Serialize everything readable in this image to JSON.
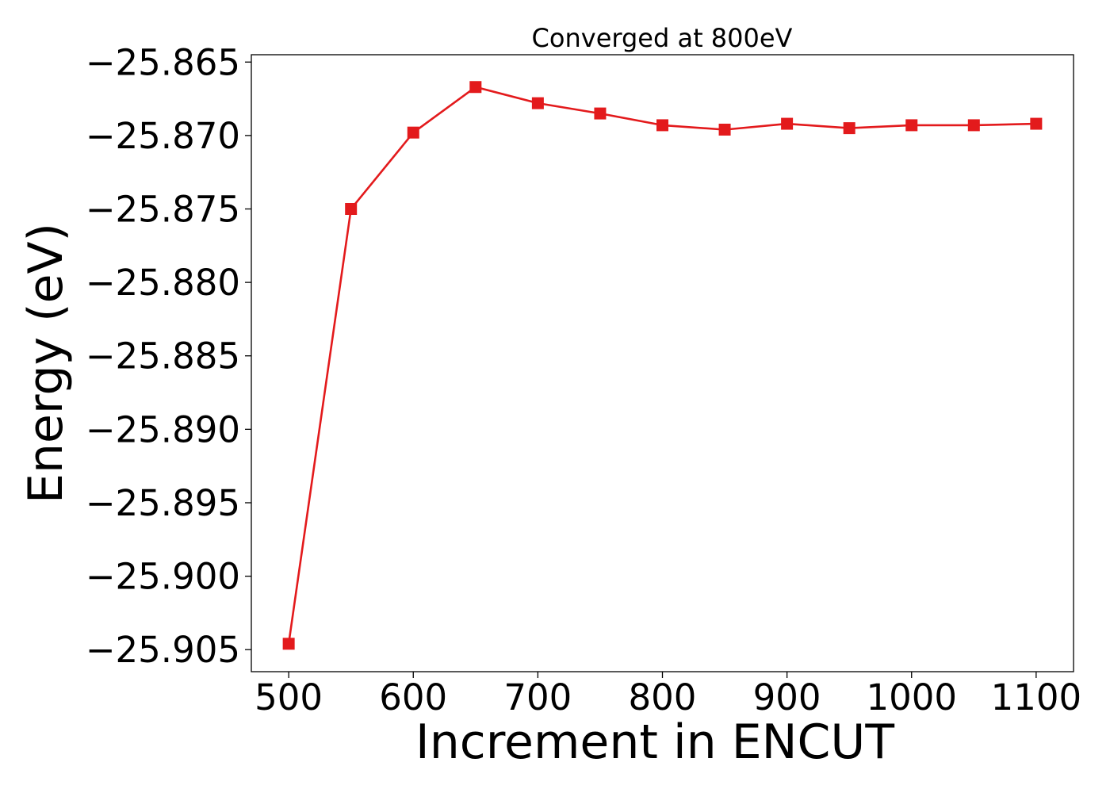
{
  "chart_data": {
    "type": "line",
    "title": "Converged at 800eV",
    "xlabel": "Increment in ENCUT",
    "ylabel": "Energy (eV)",
    "xlim": [
      470,
      1130
    ],
    "ylim": [
      -25.9065,
      -25.8645
    ],
    "xticks": [
      500,
      600,
      700,
      800,
      900,
      1000,
      1100
    ],
    "yticks": [
      -25.865,
      -25.87,
      -25.875,
      -25.88,
      -25.885,
      -25.89,
      -25.895,
      -25.9,
      -25.905
    ],
    "grid": false,
    "series": [
      {
        "color": "#e31a1c",
        "marker": "square",
        "x": [
          500,
          550,
          600,
          650,
          700,
          750,
          800,
          850,
          900,
          950,
          1000,
          1050,
          1100
        ],
        "y": [
          -25.9046,
          -25.875,
          -25.8698,
          -25.8667,
          -25.8678,
          -25.8685,
          -25.8693,
          -25.8696,
          -25.8692,
          -25.8695,
          -25.8693,
          -25.8693,
          -25.8692
        ]
      }
    ]
  }
}
